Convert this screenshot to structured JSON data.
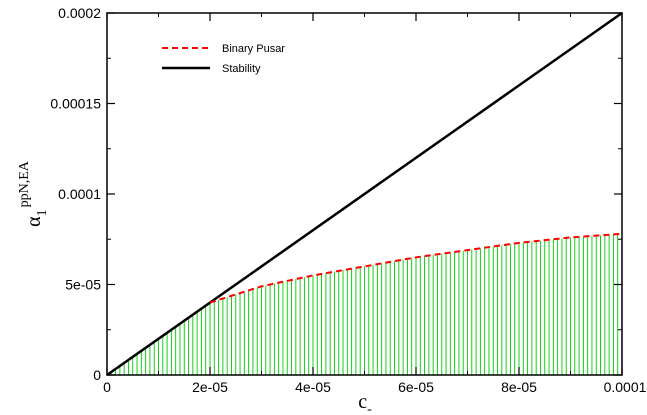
{
  "chart_data": {
    "type": "line",
    "xlim": [
      0,
      0.0001
    ],
    "ylim": [
      0,
      0.0002
    ],
    "x_ticks": [
      0,
      2e-05,
      4e-05,
      6e-05,
      8e-05,
      0.0001
    ],
    "x_tick_labels": [
      "0",
      "2e-05",
      "4e-05",
      "6e-05",
      "8e-05",
      "0.0001"
    ],
    "y_ticks": [
      0,
      5e-05,
      0.0001,
      0.00015,
      0.0002
    ],
    "y_tick_labels": [
      "0",
      "5e-05",
      "0.0001",
      "0.00015",
      "0.0002"
    ],
    "xlabel": {
      "base": "c",
      "sub": "-"
    },
    "ylabel": {
      "base": "α",
      "sub": "1",
      "sup": "ppN,EA"
    },
    "grid": false,
    "legend_position": "top-left",
    "series": [
      {
        "name": "Binary Pusar",
        "style": "dashed",
        "color": "#ff0000",
        "x": [
          2e-05,
          3e-05,
          4e-05,
          5e-05,
          6e-05,
          7e-05,
          8e-05,
          9e-05,
          0.0001
        ],
        "y": [
          4e-05,
          4.9e-05,
          5.5e-05,
          6e-05,
          6.5e-05,
          6.9e-05,
          7.3e-05,
          7.6e-05,
          7.8e-05
        ]
      },
      {
        "name": "Stability",
        "style": "solid",
        "color": "#000000",
        "x": [
          0,
          0.0001
        ],
        "y": [
          0,
          0.0002
        ]
      }
    ],
    "allowed_region": {
      "fill_color": "#00cc00",
      "lower_bound": "zero",
      "upper_bound": "min(Stability, Binary Pusar)"
    }
  }
}
